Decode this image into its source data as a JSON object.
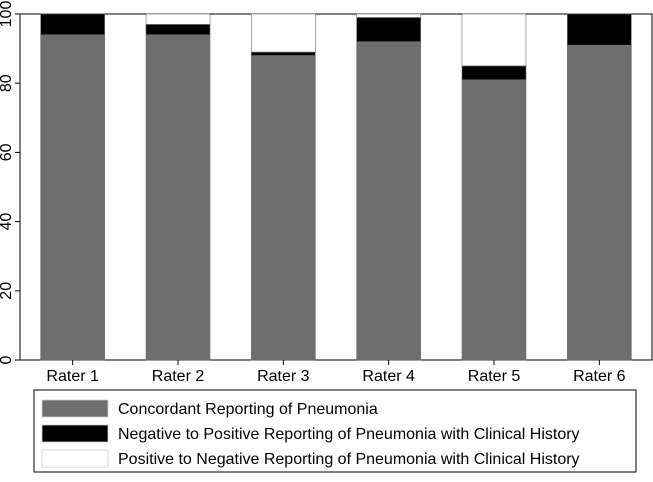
{
  "chart_data": {
    "type": "bar",
    "stacked": true,
    "categories": [
      "Rater 1",
      "Rater 2",
      "Rater 3",
      "Rater 4",
      "Rater 5",
      "Rater 6"
    ],
    "series": [
      {
        "name": "Concordant Reporting of Pneumonia",
        "color": "#6e6e6e",
        "values": [
          94,
          94,
          88,
          92,
          81,
          91
        ]
      },
      {
        "name": "Negative to Positive Reporting of Pneumonia with Clinical History",
        "color": "#000000",
        "values": [
          6,
          3,
          1,
          7,
          4,
          9
        ]
      },
      {
        "name": "Positive to Negative Reporting of Pneumonia with Clinical History",
        "color": "#ffffff",
        "values": [
          0,
          3,
          11,
          1,
          15,
          0
        ]
      }
    ],
    "ylim": [
      0,
      100
    ],
    "yticks": [
      0,
      20,
      40,
      60,
      80,
      100
    ],
    "ytick_labels": [
      "0",
      "20",
      "40",
      "60",
      "80",
      "100"
    ],
    "grid": false,
    "legend_position": "bottom",
    "title": "",
    "xlabel": "",
    "ylabel": ""
  }
}
